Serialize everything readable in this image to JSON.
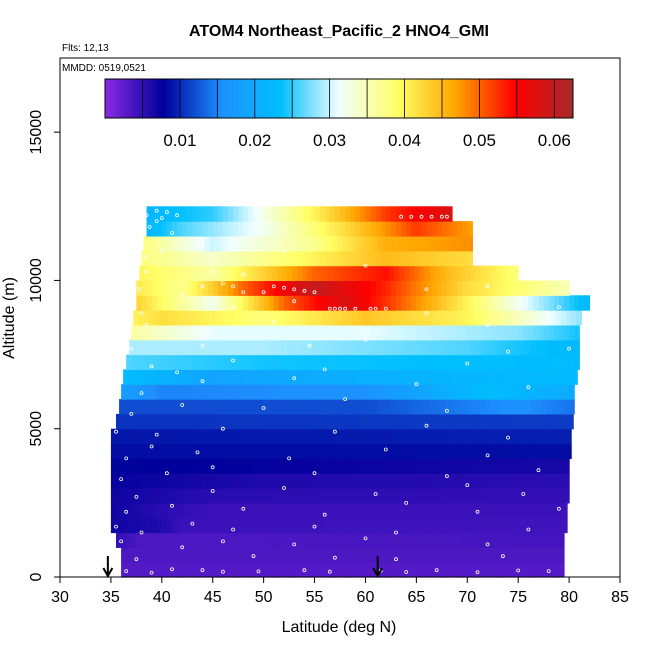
{
  "chart_data": {
    "type": "heatmap",
    "title": "ATOM4 Northeast_Pacific_2 HNO4_GMI",
    "flights_label": "Flts: 12,13",
    "mmdd_label": "MMDD: 0519,0521",
    "xlabel": "Latitude (deg N)",
    "ylabel": "Altitude (m)",
    "xlim": [
      30,
      85
    ],
    "ylim": [
      0,
      17500
    ],
    "x_ticks": [
      30,
      35,
      40,
      45,
      50,
      55,
      60,
      65,
      70,
      75,
      80,
      85
    ],
    "y_ticks": [
      0,
      5000,
      10000,
      15000
    ],
    "colorbar": {
      "range": [
        0,
        0.0625
      ],
      "tick_values": [
        0.01,
        0.02,
        0.03,
        0.04,
        0.05,
        0.06
      ],
      "tick_labels": [
        "0.01",
        "0.02",
        "0.03",
        "0.04",
        "0.05",
        "0.06"
      ],
      "colors": [
        "#8a2be2",
        "#00009b",
        "#1e90ff",
        "#00bfff",
        "#f0ffff",
        "#ffff66",
        "#ffa500",
        "#ff0000",
        "#a52a2a"
      ]
    },
    "grid": false,
    "legend": "colorbar-top",
    "arrows_at_latitude": [
      34.7,
      61.2
    ],
    "layers": [
      {
        "alt": 250,
        "lat_min": 36.0,
        "lat_max": 79.5,
        "anchors": [
          [
            36,
            0.003
          ],
          [
            79.5,
            0.003
          ]
        ]
      },
      {
        "alt": 750,
        "lat_min": 36.0,
        "lat_max": 79.5,
        "anchors": [
          [
            36,
            0.0035
          ],
          [
            79.5,
            0.0035
          ]
        ]
      },
      {
        "alt": 1250,
        "lat_min": 35.5,
        "lat_max": 79.5,
        "anchors": [
          [
            35.5,
            0.005
          ],
          [
            38,
            0.0035
          ],
          [
            79.5,
            0.004
          ]
        ]
      },
      {
        "alt": 1750,
        "lat_min": 35.0,
        "lat_max": 79.8,
        "anchors": [
          [
            35,
            0.007
          ],
          [
            40,
            0.006
          ],
          [
            42,
            0.0045
          ],
          [
            79.8,
            0.0042
          ]
        ]
      },
      {
        "alt": 2250,
        "lat_min": 35.0,
        "lat_max": 79.8,
        "anchors": [
          [
            35,
            0.007
          ],
          [
            40,
            0.0055
          ],
          [
            45,
            0.0045
          ],
          [
            79.8,
            0.0045
          ]
        ]
      },
      {
        "alt": 2750,
        "lat_min": 35.0,
        "lat_max": 80.0,
        "anchors": [
          [
            35,
            0.007
          ],
          [
            45,
            0.0055
          ],
          [
            80,
            0.005
          ]
        ]
      },
      {
        "alt": 3250,
        "lat_min": 35.0,
        "lat_max": 80.0,
        "anchors": [
          [
            35,
            0.0075
          ],
          [
            50,
            0.006
          ],
          [
            80,
            0.0055
          ]
        ]
      },
      {
        "alt": 3750,
        "lat_min": 35.0,
        "lat_max": 80.0,
        "anchors": [
          [
            35,
            0.008
          ],
          [
            50,
            0.0075
          ],
          [
            80,
            0.0065
          ]
        ]
      },
      {
        "alt": 4250,
        "lat_min": 35.0,
        "lat_max": 80.2,
        "anchors": [
          [
            35,
            0.0085
          ],
          [
            80.2,
            0.0085
          ]
        ]
      },
      {
        "alt": 4750,
        "lat_min": 35.0,
        "lat_max": 80.2,
        "anchors": [
          [
            35,
            0.009
          ],
          [
            80.2,
            0.0095
          ]
        ]
      },
      {
        "alt": 5250,
        "lat_min": 35.5,
        "lat_max": 80.4,
        "anchors": [
          [
            35.5,
            0.0105
          ],
          [
            80.4,
            0.011
          ]
        ]
      },
      {
        "alt": 5750,
        "lat_min": 35.8,
        "lat_max": 80.5,
        "anchors": [
          [
            35.8,
            0.012
          ],
          [
            60,
            0.012
          ],
          [
            75,
            0.016
          ],
          [
            80.5,
            0.014
          ]
        ]
      },
      {
        "alt": 6250,
        "lat_min": 36.0,
        "lat_max": 80.5,
        "anchors": [
          [
            36,
            0.018
          ],
          [
            40,
            0.015
          ],
          [
            60,
            0.016
          ],
          [
            72,
            0.023
          ],
          [
            80.5,
            0.02
          ]
        ]
      },
      {
        "alt": 6750,
        "lat_min": 36.2,
        "lat_max": 80.8,
        "anchors": [
          [
            36.2,
            0.023
          ],
          [
            45,
            0.019
          ],
          [
            70,
            0.022
          ],
          [
            80.8,
            0.023
          ]
        ]
      },
      {
        "alt": 7250,
        "lat_min": 36.5,
        "lat_max": 81.0,
        "anchors": [
          [
            36.5,
            0.026
          ],
          [
            50,
            0.024
          ],
          [
            80,
            0.023
          ],
          [
            81,
            0.022
          ]
        ]
      },
      {
        "alt": 7750,
        "lat_min": 36.8,
        "lat_max": 81.0,
        "anchors": [
          [
            36.8,
            0.029
          ],
          [
            50,
            0.029
          ],
          [
            70,
            0.026
          ],
          [
            81,
            0.022
          ]
        ]
      },
      {
        "alt": 8250,
        "lat_min": 37.0,
        "lat_max": 81.0,
        "anchors": [
          [
            37,
            0.036
          ],
          [
            45,
            0.031
          ],
          [
            60,
            0.031
          ],
          [
            75,
            0.028
          ],
          [
            81,
            0.024
          ]
        ]
      },
      {
        "alt": 8750,
        "lat_min": 37.2,
        "lat_max": 81.2,
        "anchors": [
          [
            37.2,
            0.04
          ],
          [
            40,
            0.042
          ],
          [
            50,
            0.038
          ],
          [
            60,
            0.044
          ],
          [
            70,
            0.04
          ],
          [
            81.2,
            0.028
          ]
        ]
      },
      {
        "alt": 9250,
        "lat_min": 37.5,
        "lat_max": 82.0,
        "anchors": [
          [
            37.5,
            0.043
          ],
          [
            45,
            0.032
          ],
          [
            52,
            0.05
          ],
          [
            58,
            0.058
          ],
          [
            65,
            0.048
          ],
          [
            75,
            0.032
          ],
          [
            82,
            0.022
          ]
        ]
      },
      {
        "alt": 9750,
        "lat_min": 37.5,
        "lat_max": 80.0,
        "anchors": [
          [
            37.5,
            0.041
          ],
          [
            42,
            0.037
          ],
          [
            48,
            0.05
          ],
          [
            55,
            0.06
          ],
          [
            62,
            0.053
          ],
          [
            70,
            0.042
          ],
          [
            80,
            0.035
          ]
        ]
      },
      {
        "alt": 10250,
        "lat_min": 37.8,
        "lat_max": 75.0,
        "anchors": [
          [
            37.8,
            0.04
          ],
          [
            45,
            0.036
          ],
          [
            55,
            0.05
          ],
          [
            62,
            0.054
          ],
          [
            68,
            0.045
          ],
          [
            75,
            0.038
          ]
        ]
      },
      {
        "alt": 10750,
        "lat_min": 38.0,
        "lat_max": 70.5,
        "anchors": [
          [
            38,
            0.038
          ],
          [
            45,
            0.034
          ],
          [
            55,
            0.04
          ],
          [
            62,
            0.045
          ],
          [
            70.5,
            0.042
          ]
        ]
      },
      {
        "alt": 11250,
        "lat_min": 38.2,
        "lat_max": 70.5,
        "anchors": [
          [
            38.2,
            0.038
          ],
          [
            45,
            0.03
          ],
          [
            55,
            0.037
          ],
          [
            62,
            0.046
          ],
          [
            70.5,
            0.048
          ]
        ]
      },
      {
        "alt": 11750,
        "lat_min": 38.5,
        "lat_max": 70.5,
        "anchors": [
          [
            38.5,
            0.022
          ],
          [
            42,
            0.026
          ],
          [
            50,
            0.032
          ],
          [
            58,
            0.042
          ],
          [
            65,
            0.052
          ],
          [
            70.5,
            0.047
          ]
        ]
      },
      {
        "alt": 12250,
        "lat_min": 38.5,
        "lat_max": 68.5,
        "anchors": [
          [
            38.5,
            0.022
          ],
          [
            45,
            0.025
          ],
          [
            55,
            0.04
          ],
          [
            62,
            0.052
          ],
          [
            68.5,
            0.058
          ]
        ]
      }
    ],
    "obs_points": [
      [
        36.5,
        200
      ],
      [
        39,
        150
      ],
      [
        41,
        260
      ],
      [
        44,
        230
      ],
      [
        46,
        180
      ],
      [
        49.5,
        190
      ],
      [
        54,
        230
      ],
      [
        56.5,
        180
      ],
      [
        61.5,
        210
      ],
      [
        64,
        170
      ],
      [
        67,
        230
      ],
      [
        71,
        160
      ],
      [
        75,
        220
      ],
      [
        78,
        200
      ],
      [
        37.5,
        600
      ],
      [
        49,
        700
      ],
      [
        57,
        650
      ],
      [
        63,
        600
      ],
      [
        73.5,
        700
      ],
      [
        36,
        1200
      ],
      [
        42,
        1000
      ],
      [
        46,
        1200
      ],
      [
        53,
        1100
      ],
      [
        60,
        1300
      ],
      [
        72,
        1100
      ],
      [
        35.5,
        1700
      ],
      [
        38,
        1500
      ],
      [
        43,
        1800
      ],
      [
        47,
        1600
      ],
      [
        55,
        1700
      ],
      [
        63,
        1500
      ],
      [
        76,
        1600
      ],
      [
        36.5,
        2200
      ],
      [
        41,
        2400
      ],
      [
        48,
        2300
      ],
      [
        56,
        2100
      ],
      [
        64,
        2500
      ],
      [
        71,
        2200
      ],
      [
        79,
        2300
      ],
      [
        37.5,
        2700
      ],
      [
        45,
        2900
      ],
      [
        52,
        3000
      ],
      [
        61,
        2800
      ],
      [
        70,
        3100
      ],
      [
        75.5,
        2800
      ],
      [
        36,
        3300
      ],
      [
        40.5,
        3500
      ],
      [
        45,
        3700
      ],
      [
        55,
        3500
      ],
      [
        68,
        3400
      ],
      [
        77,
        3600
      ],
      [
        36.5,
        4000
      ],
      [
        39,
        4400
      ],
      [
        43.5,
        4200
      ],
      [
        52.5,
        4000
      ],
      [
        62,
        4300
      ],
      [
        72,
        4100
      ],
      [
        35.5,
        4900
      ],
      [
        39.5,
        4800
      ],
      [
        46,
        5000
      ],
      [
        57,
        4900
      ],
      [
        66,
        5100
      ],
      [
        74,
        4700
      ],
      [
        37,
        5500
      ],
      [
        42,
        5800
      ],
      [
        50,
        5700
      ],
      [
        58,
        6000
      ],
      [
        68,
        5600
      ],
      [
        38,
        6200
      ],
      [
        44,
        6600
      ],
      [
        53,
        6700
      ],
      [
        65,
        6500
      ],
      [
        76,
        6400
      ],
      [
        39,
        7100
      ],
      [
        41.5,
        6900
      ],
      [
        47,
        7300
      ],
      [
        56,
        7000
      ],
      [
        70,
        7200
      ],
      [
        37,
        7700
      ],
      [
        44,
        7800
      ],
      [
        54.5,
        7800
      ],
      [
        60,
        8000
      ],
      [
        74,
        7600
      ],
      [
        80,
        7700
      ],
      [
        38.5,
        8500
      ],
      [
        43,
        8200
      ],
      [
        51,
        8600
      ],
      [
        60,
        8300
      ],
      [
        72,
        8500
      ],
      [
        38,
        8900
      ],
      [
        47,
        9100
      ],
      [
        53,
        9300
      ],
      [
        56.5,
        9050
      ],
      [
        57,
        9050
      ],
      [
        57.5,
        9050
      ],
      [
        58,
        9050
      ],
      [
        59,
        9050
      ],
      [
        60.5,
        9050
      ],
      [
        61,
        9050
      ],
      [
        62,
        9050
      ],
      [
        66,
        8900
      ],
      [
        75,
        9200
      ],
      [
        79,
        9100
      ],
      [
        37.8,
        9700
      ],
      [
        42,
        9500
      ],
      [
        44,
        9800
      ],
      [
        46,
        9900
      ],
      [
        47,
        9800
      ],
      [
        48,
        9600
      ],
      [
        50,
        9600
      ],
      [
        51,
        9800
      ],
      [
        52,
        9750
      ],
      [
        53,
        9700
      ],
      [
        54,
        9650
      ],
      [
        55,
        9600
      ],
      [
        66,
        9700
      ],
      [
        72,
        9800
      ],
      [
        38.5,
        10300
      ],
      [
        45,
        10300
      ],
      [
        48,
        10200
      ],
      [
        60,
        10500
      ],
      [
        38.5,
        10800
      ],
      [
        40,
        11000
      ],
      [
        44,
        11200
      ],
      [
        52,
        11000
      ],
      [
        38.8,
        11800
      ],
      [
        39.5,
        12000
      ],
      [
        40,
        12100
      ],
      [
        41,
        11600
      ],
      [
        50,
        11900
      ],
      [
        38.5,
        12200
      ],
      [
        39.5,
        12350
      ],
      [
        40.5,
        12300
      ],
      [
        41.5,
        12200
      ],
      [
        63.5,
        12150
      ],
      [
        64.5,
        12150
      ],
      [
        65.5,
        12150
      ],
      [
        66.5,
        12150
      ],
      [
        67.5,
        12150
      ],
      [
        68,
        12150
      ]
    ]
  }
}
